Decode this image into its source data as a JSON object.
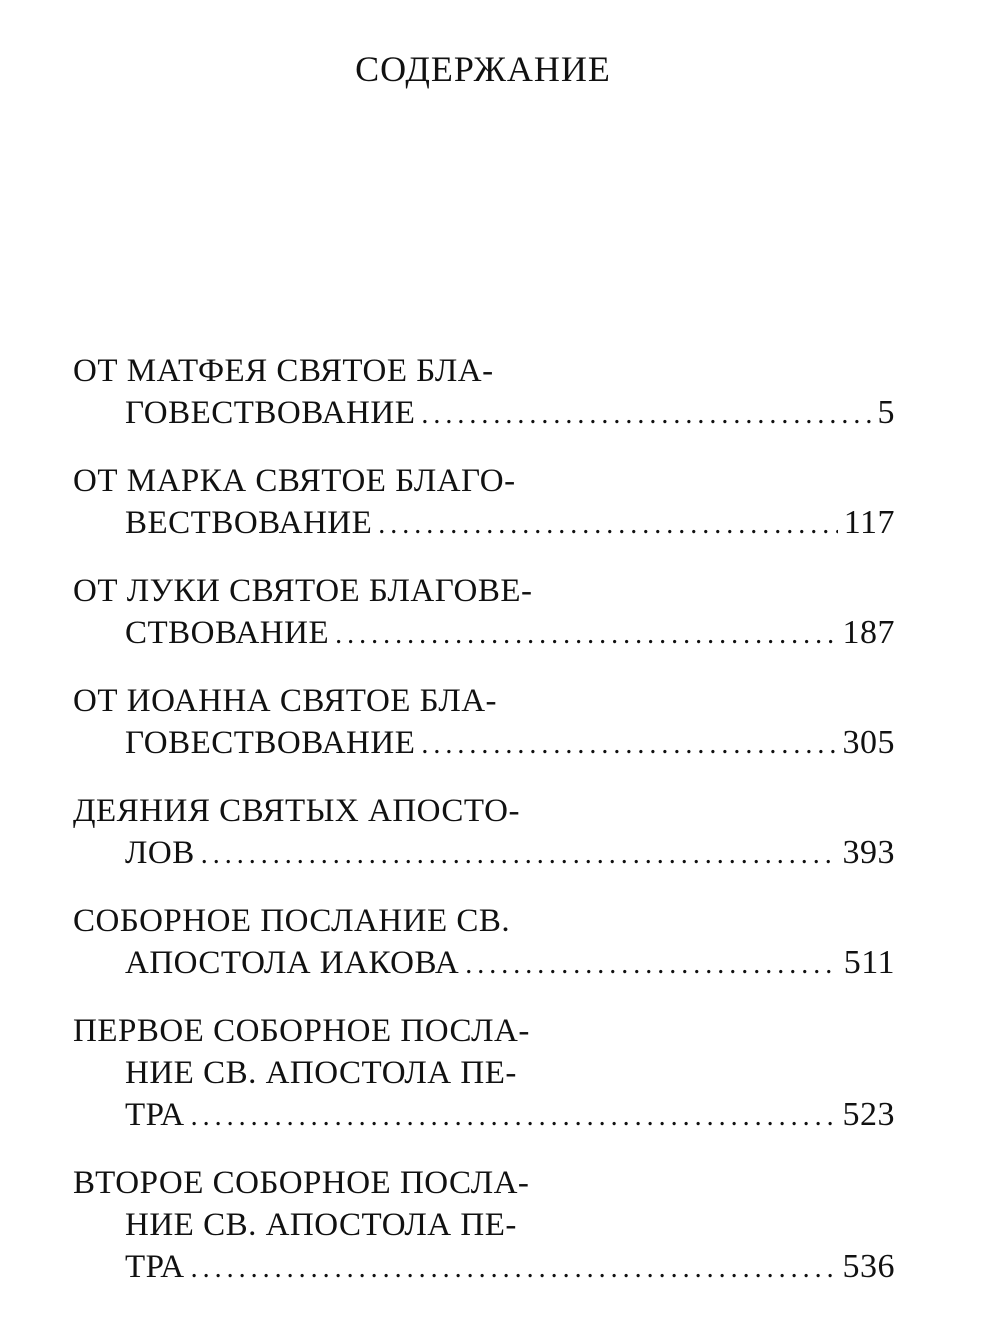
{
  "title": "СОДЕРЖАНИЕ",
  "entries": [
    {
      "lines": [
        "ОТ МАТФЕЯ СВЯТОЕ БЛА-",
        "ГОВЕСТВОВАНИЕ"
      ],
      "page": "5"
    },
    {
      "lines": [
        "ОТ МАРКА СВЯТОЕ БЛАГО-",
        "ВЕСТВОВАНИЕ"
      ],
      "page": "117"
    },
    {
      "lines": [
        "ОТ ЛУКИ СВЯТОЕ БЛАГОВЕ-",
        "СТВОВАНИЕ"
      ],
      "page": "187"
    },
    {
      "lines": [
        "ОТ ИОАННА СВЯТОЕ БЛА-",
        "ГОВЕСТВОВАНИЕ"
      ],
      "page": "305"
    },
    {
      "lines": [
        "ДЕЯНИЯ СВЯТЫХ АПОСТО-",
        "ЛОВ"
      ],
      "page": "393"
    },
    {
      "lines": [
        "СОБОРНОЕ ПОСЛАНИЕ СВ.",
        "АПОСТОЛА ИАКОВА"
      ],
      "page": "511"
    },
    {
      "lines": [
        "ПЕРВОЕ СОБОРНОЕ ПОСЛА-",
        "НИЕ СВ. АПОСТОЛА ПЕ-",
        "ТРА"
      ],
      "page": "523"
    },
    {
      "lines": [
        "ВТОРОЕ СОБОРНОЕ ПОСЛА-",
        "НИЕ СВ. АПОСТОЛА ПЕ-",
        "ТРА"
      ],
      "page": "536"
    }
  ]
}
